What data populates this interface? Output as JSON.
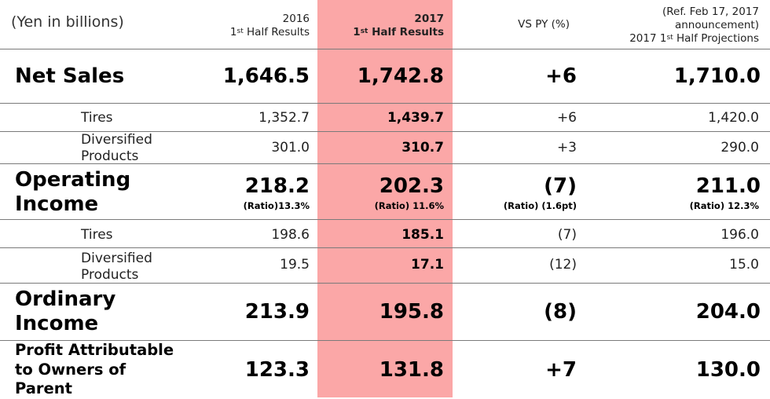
{
  "header": {
    "units": "(Yen in billions)",
    "col2016_year": "2016",
    "col2016_label_prefix": "1",
    "col2016_label_sup": "st",
    "col2016_label_suffix": " Half Results",
    "col2017_year": "2017",
    "col2017_label_prefix": "1",
    "col2017_label_sup": "st",
    "col2017_label_suffix": " Half Results",
    "vs_py": "VS PY (%)",
    "ref_line1": "(Ref.  Feb 17, 2017",
    "ref_line2": "announcement)",
    "ref_line3_prefix": "2017 1",
    "ref_line3_sup": "st",
    "ref_line3_suffix": " Half Projections"
  },
  "rows": {
    "net_sales": {
      "label": "Net Sales",
      "v2016": "1,646.5",
      "v2017": "1,742.8",
      "vs": "+6",
      "proj": "1,710.0"
    },
    "ns_tires": {
      "label": "Tires",
      "v2016": "1,352.7",
      "v2017": "1,439.7",
      "vs": "+6",
      "proj": "1,420.0"
    },
    "ns_div": {
      "label1": "Diversified",
      "label2": "Products",
      "v2016": "301.0",
      "v2017": "310.7",
      "vs": "+3",
      "proj": "290.0"
    },
    "op_income": {
      "label1": "Operating",
      "label2": "Income",
      "v2016": "218.2",
      "v2017": "202.3",
      "vs": "(7)",
      "proj": "211.0",
      "r2016": "(Ratio)13.3%",
      "r2017": "(Ratio) 11.6%",
      "rvs": "(Ratio) (1.6pt)",
      "rproj": "(Ratio) 12.3%"
    },
    "op_tires": {
      "label": "Tires",
      "v2016": "198.6",
      "v2017": "185.1",
      "vs": "(7)",
      "proj": "196.0"
    },
    "op_div": {
      "label1": "Diversified",
      "label2": "Products",
      "v2016": "19.5",
      "v2017": "17.1",
      "vs": "(12)",
      "proj": "15.0"
    },
    "ord_income": {
      "label1": "Ordinary",
      "label2": "Income",
      "v2016": "213.9",
      "v2017": "195.8",
      "vs": "(8)",
      "proj": "204.0"
    },
    "profit": {
      "label1": "Profit Attributable",
      "label2": "to Owners of",
      "label3": "Parent",
      "v2016": "123.3",
      "v2017": "131.8",
      "vs": "+7",
      "proj": "130.0"
    }
  }
}
